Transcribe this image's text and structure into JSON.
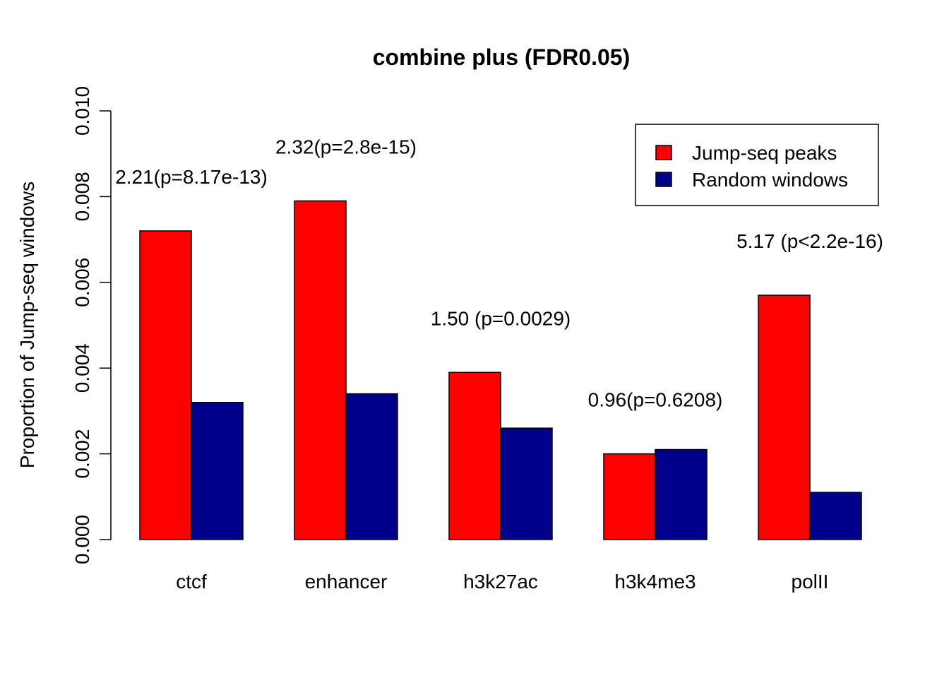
{
  "chart_data": {
    "type": "bar",
    "title": "combine plus (FDR0.05)",
    "xlabel": "",
    "ylabel": "Proportion of Jump-seq windows",
    "ylim": [
      0,
      0.01
    ],
    "yticks": [
      "0.000",
      "0.002",
      "0.004",
      "0.006",
      "0.008",
      "0.010"
    ],
    "categories": [
      "ctcf",
      "enhancer",
      "h3k27ac",
      "h3k4me3",
      "polII"
    ],
    "series": [
      {
        "name": "Jump-seq peaks",
        "color": "#ff0000",
        "values": [
          0.0072,
          0.0079,
          0.0039,
          0.002,
          0.0057
        ]
      },
      {
        "name": "Random windows",
        "color": "#00008b",
        "values": [
          0.0032,
          0.0034,
          0.0026,
          0.0021,
          0.0011
        ]
      }
    ],
    "annotations": [
      "2.21(p=8.17e-13)",
      "2.32(p=2.8e-15)",
      "1.50 (p=0.0029)",
      "0.96(p=0.6208)",
      "5.17 (p<2.2e-16)"
    ],
    "legend": "top-right",
    "grid": false
  }
}
